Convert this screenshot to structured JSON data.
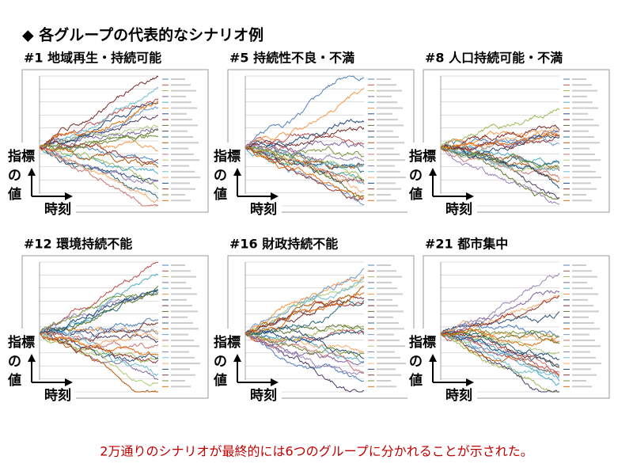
{
  "header": {
    "title": "◆ 各グループの代表的なシナリオ例"
  },
  "panels": [
    {
      "title": "#1 地域再生・持続可能"
    },
    {
      "title": "#5 持続性不良・不満"
    },
    {
      "title": "#8 人口持続可能・不満"
    },
    {
      "title": "#12 環境持続不能"
    },
    {
      "title": "#16 財政持続不能"
    },
    {
      "title": "#21 都市集中"
    }
  ],
  "axis_labels": {
    "y": [
      "指標",
      "の",
      "値"
    ],
    "x": "時刻"
  },
  "footer": "2万通りのシナリオが最終的には6つのグループに分かれることが示された。"
}
